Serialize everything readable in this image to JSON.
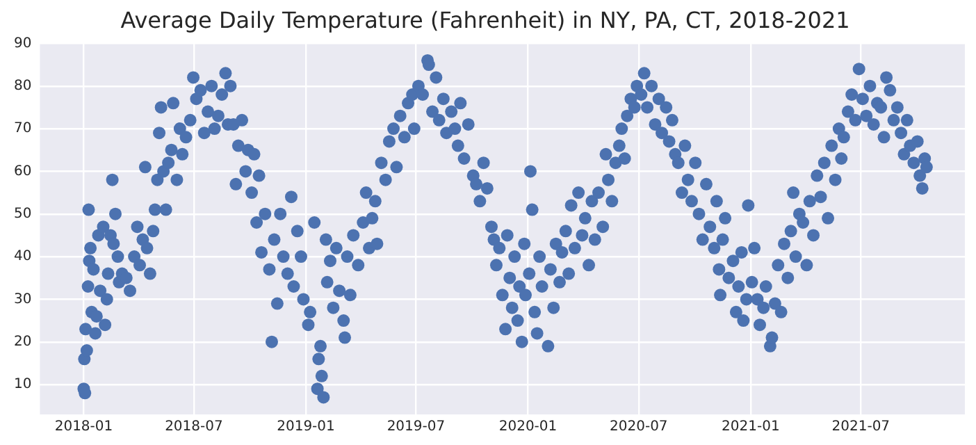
{
  "chart_data": {
    "type": "scatter",
    "title": "Average Daily Temperature (Fahrenheit) in NY, PA, CT, 2018-2021",
    "color": "#4c72b0",
    "marker": "circle",
    "grid": true,
    "legend": false,
    "xlim": [
      "2017-10-21",
      "2021-12-19"
    ],
    "ylim": [
      3,
      90
    ],
    "xticks": [
      "2018-01",
      "2018-07",
      "2019-01",
      "2019-07",
      "2020-01",
      "2020-07",
      "2021-01",
      "2021-07"
    ],
    "yticks": [
      10,
      20,
      30,
      40,
      50,
      60,
      70,
      80,
      90
    ],
    "x": [
      "2018-01-01",
      "2018-01-03",
      "2018-01-02",
      "2018-01-04",
      "2018-01-06",
      "2018-01-08",
      "2018-01-09",
      "2018-01-10",
      "2018-01-12",
      "2018-01-14",
      "2018-01-17",
      "2018-01-20",
      "2018-01-22",
      "2018-01-25",
      "2018-01-28",
      "2018-02-02",
      "2018-02-05",
      "2018-02-08",
      "2018-02-10",
      "2018-02-14",
      "2018-02-17",
      "2018-02-19",
      "2018-02-22",
      "2018-02-26",
      "2018-02-28",
      "2018-03-05",
      "2018-03-12",
      "2018-03-18",
      "2018-03-25",
      "2018-03-30",
      "2018-04-03",
      "2018-04-08",
      "2018-04-12",
      "2018-04-15",
      "2018-04-20",
      "2018-04-25",
      "2018-04-28",
      "2018-05-02",
      "2018-05-05",
      "2018-05-08",
      "2018-05-12",
      "2018-05-16",
      "2018-05-20",
      "2018-05-25",
      "2018-05-28",
      "2018-06-03",
      "2018-06-08",
      "2018-06-12",
      "2018-06-18",
      "2018-06-25",
      "2018-06-30",
      "2018-07-05",
      "2018-07-12",
      "2018-07-18",
      "2018-07-24",
      "2018-07-30",
      "2018-08-04",
      "2018-08-10",
      "2018-08-16",
      "2018-08-22",
      "2018-08-26",
      "2018-08-30",
      "2018-09-04",
      "2018-09-08",
      "2018-09-12",
      "2018-09-18",
      "2018-09-24",
      "2018-09-28",
      "2018-10-04",
      "2018-10-08",
      "2018-10-12",
      "2018-10-16",
      "2018-10-20",
      "2018-10-26",
      "2018-11-02",
      "2018-11-06",
      "2018-11-10",
      "2018-11-15",
      "2018-11-20",
      "2018-11-25",
      "2018-12-02",
      "2018-12-08",
      "2018-12-12",
      "2018-12-18",
      "2018-12-24",
      "2018-12-28",
      "2019-01-05",
      "2019-01-08",
      "2019-01-15",
      "2019-01-20",
      "2019-01-22",
      "2019-01-25",
      "2019-01-27",
      "2019-01-30",
      "2019-02-03",
      "2019-02-05",
      "2019-02-10",
      "2019-02-15",
      "2019-02-20",
      "2019-02-25",
      "2019-03-04",
      "2019-03-06",
      "2019-03-10",
      "2019-03-15",
      "2019-03-20",
      "2019-03-28",
      "2019-04-05",
      "2019-04-10",
      "2019-04-15",
      "2019-04-20",
      "2019-04-25",
      "2019-04-28",
      "2019-05-05",
      "2019-05-12",
      "2019-05-18",
      "2019-05-25",
      "2019-05-30",
      "2019-06-05",
      "2019-06-12",
      "2019-06-18",
      "2019-06-25",
      "2019-06-28",
      "2019-07-05",
      "2019-07-12",
      "2019-07-20",
      "2019-07-22",
      "2019-07-28",
      "2019-08-03",
      "2019-08-08",
      "2019-08-15",
      "2019-08-20",
      "2019-08-28",
      "2019-09-03",
      "2019-09-08",
      "2019-09-12",
      "2019-09-18",
      "2019-09-25",
      "2019-10-03",
      "2019-10-08",
      "2019-10-14",
      "2019-10-20",
      "2019-10-26",
      "2019-11-02",
      "2019-11-06",
      "2019-11-10",
      "2019-11-15",
      "2019-11-20",
      "2019-11-25",
      "2019-11-28",
      "2019-12-02",
      "2019-12-06",
      "2019-12-10",
      "2019-12-15",
      "2019-12-18",
      "2019-12-22",
      "2019-12-26",
      "2019-12-28",
      "2020-01-03",
      "2020-01-05",
      "2020-01-08",
      "2020-01-12",
      "2020-01-16",
      "2020-01-20",
      "2020-01-24",
      "2020-02-03",
      "2020-02-07",
      "2020-02-12",
      "2020-02-16",
      "2020-02-22",
      "2020-02-26",
      "2020-03-03",
      "2020-03-08",
      "2020-03-12",
      "2020-03-18",
      "2020-03-24",
      "2020-03-30",
      "2020-04-04",
      "2020-04-10",
      "2020-04-15",
      "2020-04-20",
      "2020-04-26",
      "2020-05-03",
      "2020-05-08",
      "2020-05-12",
      "2020-05-18",
      "2020-05-24",
      "2020-05-30",
      "2020-06-03",
      "2020-06-08",
      "2020-06-12",
      "2020-06-18",
      "2020-06-24",
      "2020-06-28",
      "2020-07-05",
      "2020-07-10",
      "2020-07-15",
      "2020-07-22",
      "2020-07-28",
      "2020-08-03",
      "2020-08-08",
      "2020-08-15",
      "2020-08-20",
      "2020-08-25",
      "2020-08-30",
      "2020-09-04",
      "2020-09-10",
      "2020-09-15",
      "2020-09-20",
      "2020-09-26",
      "2020-10-02",
      "2020-10-08",
      "2020-10-14",
      "2020-10-20",
      "2020-10-26",
      "2020-11-02",
      "2020-11-06",
      "2020-11-10",
      "2020-11-12",
      "2020-11-16",
      "2020-11-20",
      "2020-11-26",
      "2020-12-03",
      "2020-12-08",
      "2020-12-12",
      "2020-12-17",
      "2020-12-20",
      "2020-12-25",
      "2020-12-28",
      "2021-01-03",
      "2021-01-07",
      "2021-01-12",
      "2021-01-16",
      "2021-01-22",
      "2021-01-26",
      "2021-02-02",
      "2021-02-05",
      "2021-02-10",
      "2021-02-15",
      "2021-02-20",
      "2021-02-25",
      "2021-03-03",
      "2021-03-08",
      "2021-03-12",
      "2021-03-16",
      "2021-03-22",
      "2021-03-28",
      "2021-04-03",
      "2021-04-08",
      "2021-04-14",
      "2021-04-20",
      "2021-04-26",
      "2021-05-02",
      "2021-05-08",
      "2021-05-14",
      "2021-05-20",
      "2021-05-26",
      "2021-05-30",
      "2021-06-03",
      "2021-06-10",
      "2021-06-16",
      "2021-06-22",
      "2021-06-28",
      "2021-07-04",
      "2021-07-10",
      "2021-07-16",
      "2021-07-22",
      "2021-07-28",
      "2021-08-03",
      "2021-08-08",
      "2021-08-12",
      "2021-08-18",
      "2021-08-24",
      "2021-08-30",
      "2021-09-05",
      "2021-09-10",
      "2021-09-15",
      "2021-09-20",
      "2021-09-26",
      "2021-10-02",
      "2021-10-06",
      "2021-10-10",
      "2021-10-14",
      "2021-10-17"
    ],
    "values": [
      9,
      8,
      16,
      23,
      18,
      33,
      51,
      39,
      42,
      27,
      37,
      22,
      26,
      45,
      32,
      47,
      24,
      30,
      36,
      45,
      58,
      43,
      50,
      40,
      34,
      36,
      35,
      32,
      40,
      47,
      38,
      44,
      61,
      42,
      36,
      46,
      51,
      58,
      69,
      75,
      60,
      51,
      62,
      65,
      76,
      58,
      70,
      64,
      68,
      72,
      82,
      77,
      79,
      69,
      74,
      80,
      70,
      73,
      78,
      83,
      71,
      80,
      71,
      57,
      66,
      72,
      60,
      65,
      55,
      64,
      48,
      59,
      41,
      50,
      37,
      20,
      44,
      29,
      50,
      40,
      36,
      54,
      33,
      46,
      40,
      30,
      24,
      27,
      48,
      9,
      16,
      19,
      12,
      7,
      44,
      34,
      39,
      28,
      42,
      32,
      25,
      21,
      40,
      31,
      45,
      38,
      48,
      55,
      42,
      49,
      53,
      43,
      62,
      58,
      67,
      70,
      61,
      73,
      68,
      76,
      78,
      70,
      80,
      78,
      86,
      85,
      74,
      82,
      72,
      77,
      69,
      74,
      70,
      66,
      76,
      63,
      71,
      59,
      57,
      53,
      62,
      56,
      47,
      44,
      38,
      42,
      31,
      23,
      45,
      35,
      28,
      40,
      25,
      33,
      20,
      43,
      31,
      36,
      60,
      51,
      27,
      22,
      40,
      33,
      19,
      37,
      28,
      43,
      34,
      41,
      46,
      36,
      52,
      42,
      55,
      45,
      49,
      38,
      53,
      44,
      55,
      47,
      64,
      58,
      53,
      62,
      66,
      70,
      63,
      73,
      77,
      75,
      80,
      78,
      83,
      75,
      80,
      71,
      77,
      69,
      75,
      67,
      72,
      64,
      62,
      55,
      66,
      58,
      53,
      62,
      50,
      44,
      57,
      47,
      42,
      53,
      37,
      31,
      44,
      49,
      35,
      39,
      27,
      33,
      41,
      25,
      30,
      52,
      34,
      42,
      30,
      24,
      28,
      33,
      19,
      21,
      29,
      38,
      27,
      43,
      35,
      46,
      55,
      40,
      50,
      48,
      38,
      53,
      45,
      59,
      54,
      62,
      49,
      66,
      58,
      70,
      63,
      68,
      74,
      78,
      72,
      84,
      77,
      73,
      80,
      71,
      76,
      75,
      68,
      82,
      79,
      72,
      75,
      69,
      64,
      72,
      66,
      62,
      67,
      59,
      56,
      63,
      61
    ]
  }
}
